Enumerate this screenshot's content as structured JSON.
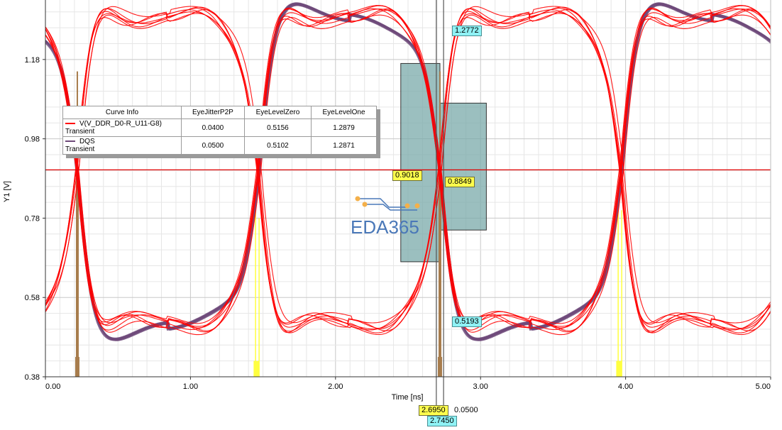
{
  "chart_data": {
    "type": "line",
    "title": "",
    "xlabel": "Time [ns]",
    "ylabel": "Y1 [V]",
    "xlim": [
      0,
      5
    ],
    "ylim": [
      0.38,
      1.33
    ],
    "x_ticks": [
      "0.00",
      "1.00",
      "2.00",
      "3.00",
      "4.00",
      "5.00"
    ],
    "y_ticks": [
      "0.38",
      "0.58",
      "0.78",
      "0.98",
      "1.18"
    ],
    "grid": true,
    "series": [
      {
        "name": "V(V_DDR_D0-R_U11-G8)",
        "subname": "Transient",
        "color": "#ff0000",
        "crossings_ns": [
          0.22,
          1.47,
          2.72,
          3.97
        ],
        "level_high": 1.2879,
        "level_low": 0.5156
      },
      {
        "name": "DQS",
        "subname": "Transient",
        "color": "#6e4a7a",
        "crossings_ns": [
          0.22,
          1.47,
          2.72,
          3.97
        ],
        "level_high": 1.2871,
        "level_low": 0.5102
      }
    ],
    "legend": {
      "position": "upper-left",
      "headers": [
        "Curve Info",
        "EyeJitterP2P",
        "EyeLevelZero",
        "EyeLevelOne"
      ],
      "rows": [
        {
          "name": "V(V_DDR_D0-R_U11-G8)",
          "sub": "Transient",
          "color": "#ff0000",
          "jitter": "0.0400",
          "zero": "0.5156",
          "one": "1.2879"
        },
        {
          "name": "DQS",
          "sub": "Transient",
          "color": "#6e4a7a",
          "jitter": "0.0500",
          "zero": "0.5102",
          "one": "1.2871"
        }
      ]
    },
    "hline_v": 0.9018,
    "vlines_ns": [
      2.695,
      2.745
    ],
    "eye_masks": [
      {
        "x": [
          2.45,
          2.72
        ],
        "y": [
          0.67,
          1.17
        ],
        "color": "#7aaaaa"
      },
      {
        "x": [
          2.72,
          3.04
        ],
        "y": [
          0.75,
          1.07
        ],
        "color": "#7aaaaa"
      }
    ],
    "markers": {
      "top_value": "1.2772",
      "left_value": "0.9018",
      "right_value": "0.8849",
      "low_value": "0.5193",
      "x_value_1": "2.6950",
      "x_delta": "0.0500",
      "x_value_2": "2.7450"
    }
  },
  "watermark": "EDA365"
}
